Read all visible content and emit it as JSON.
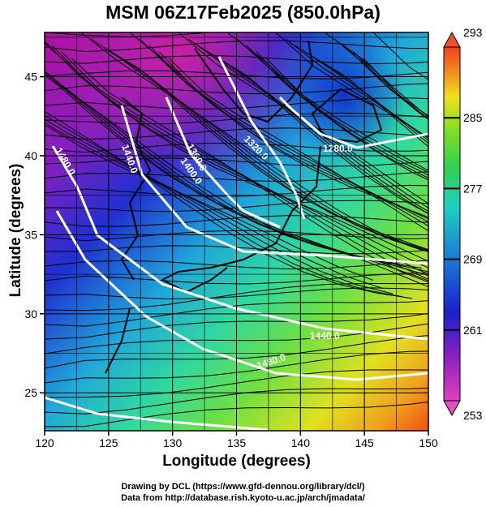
{
  "title": "MSM 06Z17Feb2025 (850.0hPa)",
  "axes": {
    "xlabel": "Longitude (degrees)",
    "ylabel": "Latitude  (degrees)",
    "x_ticks": [
      "120",
      "125",
      "130",
      "135",
      "140",
      "145",
      "150"
    ],
    "y_ticks": [
      "25",
      "30",
      "35",
      "40",
      "45"
    ]
  },
  "colorbar": {
    "ticks": [
      "293",
      "285",
      "277",
      "269",
      "261",
      "253"
    ],
    "min": 253,
    "max": 293
  },
  "contours": {
    "labels": [
      "1280.0",
      "1320.0",
      "1360.0",
      "1400.0",
      "1440.0",
      "1480.0",
      "1400.0",
      "1440.0",
      "1480.0"
    ]
  },
  "credits": {
    "line1": "Drawing by DCL (https://www.gfd-dennou.org/library/dcl/)",
    "line2": "Data from http://database.rish.kyoto-u.ac.jp/arch/jmadata/"
  },
  "colors": {
    "cold": "#d020a0",
    "mid": "#20c8c0",
    "warm": "#f05010",
    "contour": "#ffffff",
    "coast": "#000000"
  }
}
